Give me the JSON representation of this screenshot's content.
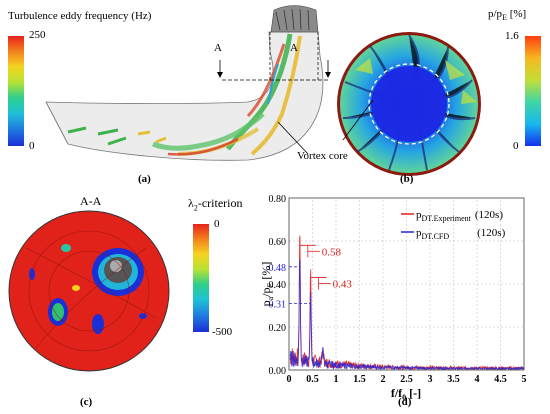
{
  "panel_a": {
    "title": "Turbulence eddy frequency (Hz)",
    "cbar_max": "250",
    "cbar_min": "0",
    "section_label": "A",
    "annotation": "Vortex core",
    "letter": "(a)"
  },
  "panel_b": {
    "title": "p/p",
    "title_sub": "E",
    "title_unit": " [%]",
    "cbar_max": "1.6",
    "cbar_min": "0",
    "letter": "(b)"
  },
  "panel_c": {
    "title": "A-A",
    "cbar_title": "λ",
    "cbar_title_sub": "2",
    "cbar_title_rest": "-criterion",
    "cbar_max": "0",
    "cbar_min": "-500",
    "letter": "(c)"
  },
  "panel_d": {
    "letter": "(d)",
    "y_tick_labels": [
      "0.00",
      "0.20",
      "0.40",
      "0.60",
      "0.80"
    ],
    "x_tick_labels": [
      "0",
      "0.5",
      "1",
      "1.5",
      "2",
      "2.5",
      "3",
      "3.5",
      "4",
      "4.5",
      "5"
    ],
    "ylabel_main": "p",
    "ylabel_sub1": "a",
    "ylabel_mid": "/p",
    "ylabel_sub2": "E",
    "ylabel_unit": " [%]",
    "xlabel_main": "f/f",
    "xlabel_sub": "0",
    "xlabel_unit": " [-]",
    "legend": [
      {
        "main": "p",
        "sub": "DT.Experiment",
        "dur": "(120s)",
        "color": "#e02020"
      },
      {
        "main": "p",
        "sub": "DT.CFD",
        "dur": "(120s)",
        "color": "#2424d8"
      }
    ],
    "annotations": [
      {
        "text": "0.58",
        "color": "#e02020"
      },
      {
        "text": "0.43",
        "color": "#e02020"
      },
      {
        "text": "0.48",
        "color": "#2424d8"
      },
      {
        "text": "0.31",
        "color": "#2424d8"
      }
    ]
  },
  "chart_data": {
    "type": "line",
    "xlabel": "f/f0 [-]",
    "ylabel": "pa/pE [%]",
    "xlim": [
      0,
      5
    ],
    "ylim": [
      0,
      0.8
    ],
    "grid": true,
    "legend_position": "top-right",
    "series": [
      {
        "name": "pDT.Experiment (120s)",
        "color": "#e02020",
        "peaks": [
          {
            "x": 0.23,
            "y": 0.58
          },
          {
            "x": 0.46,
            "y": 0.43
          }
        ]
      },
      {
        "name": "pDT.CFD (120s)",
        "color": "#2424d8",
        "peaks": [
          {
            "x": 0.23,
            "y": 0.48
          },
          {
            "x": 0.46,
            "y": 0.31
          }
        ]
      }
    ]
  }
}
